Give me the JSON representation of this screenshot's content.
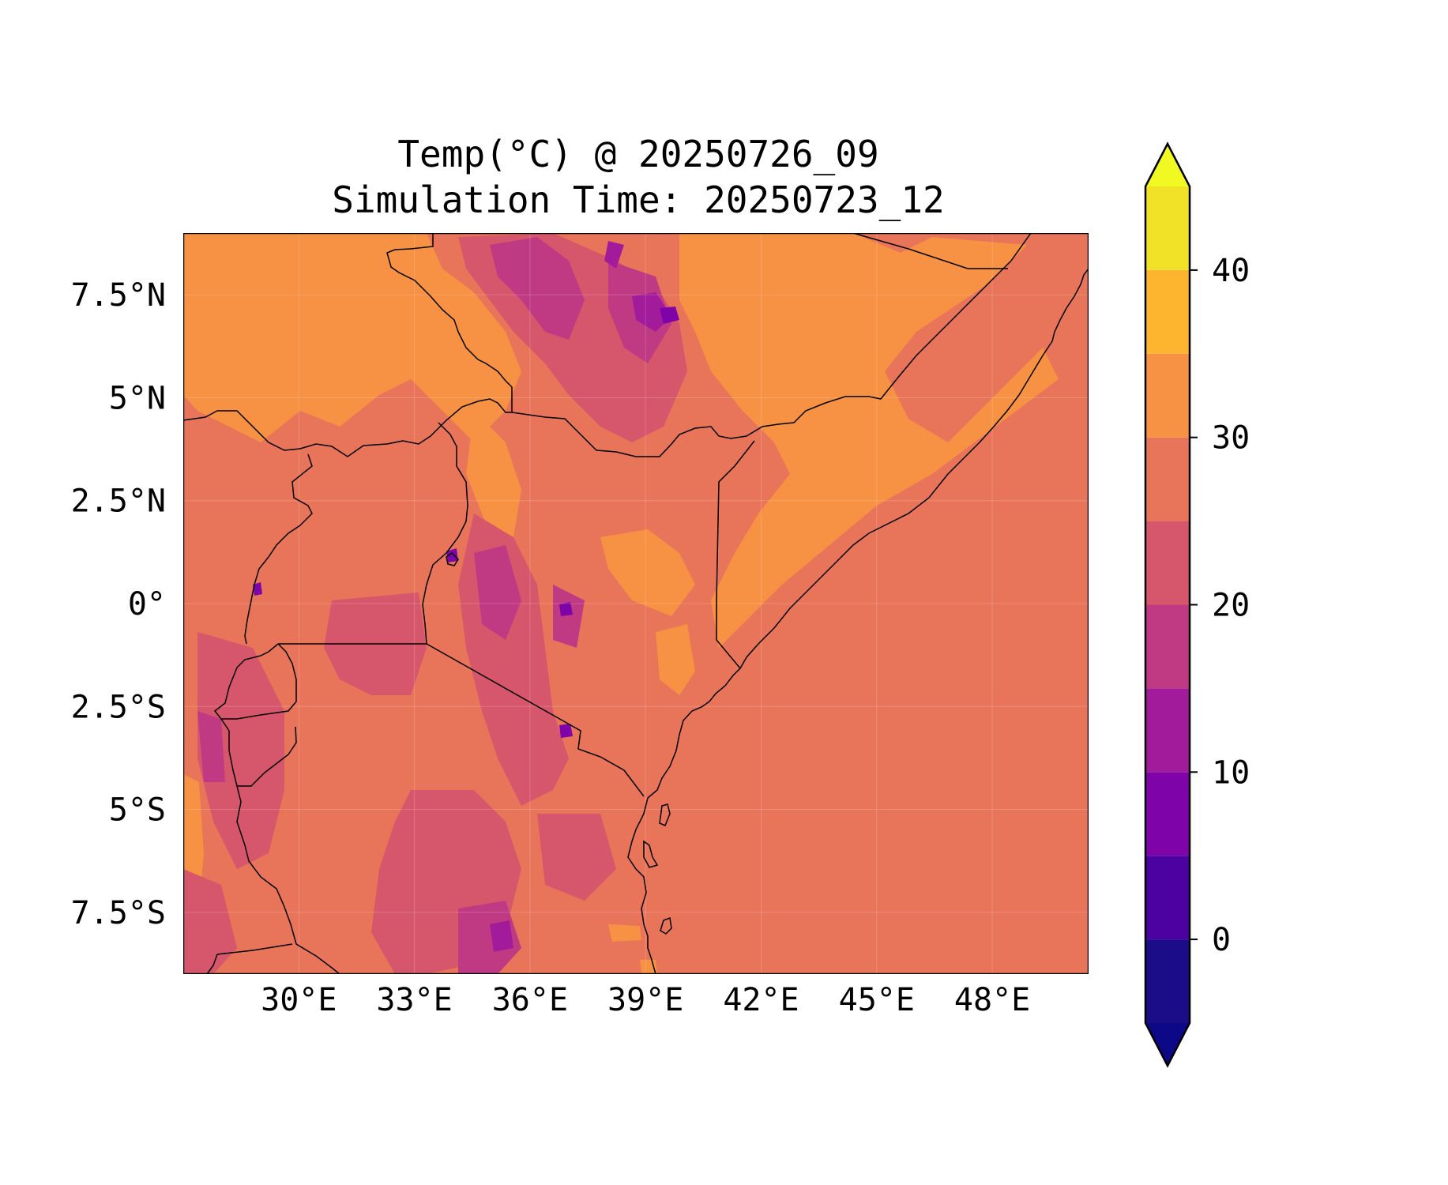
{
  "title": {
    "line1": "Temp(°C) @ 20250726_09",
    "line2": "Simulation Time: 20250723_12"
  },
  "map": {
    "extent": {
      "lon": [
        27,
        50.5
      ],
      "lat": [
        -9,
        9
      ]
    },
    "x_ticks": [
      {
        "value": 30,
        "label": "30°E"
      },
      {
        "value": 33,
        "label": "33°E"
      },
      {
        "value": 36,
        "label": "36°E"
      },
      {
        "value": 39,
        "label": "39°E"
      },
      {
        "value": 42,
        "label": "42°E"
      },
      {
        "value": 45,
        "label": "45°E"
      },
      {
        "value": 48,
        "label": "48°E"
      }
    ],
    "y_ticks": [
      {
        "value": 7.5,
        "label": "7.5°N"
      },
      {
        "value": 5,
        "label": "5°N"
      },
      {
        "value": 2.5,
        "label": "2.5°N"
      },
      {
        "value": 0,
        "label": "0°"
      },
      {
        "value": -2.5,
        "label": "2.5°S"
      },
      {
        "value": -5,
        "label": "5°S"
      },
      {
        "value": -7.5,
        "label": "7.5°S"
      }
    ],
    "background_color": "#e8745a",
    "gridlines": true
  },
  "colorbar": {
    "levels": [
      -5,
      0,
      5,
      10,
      15,
      20,
      25,
      30,
      35,
      40,
      45
    ],
    "colors": [
      "#1b0c88",
      "#4c02a1",
      "#7e03a8",
      "#a11b9b",
      "#c03a83",
      "#d6566c",
      "#e8745a",
      "#f79143",
      "#fdb42f",
      "#f2e227"
    ],
    "under_color": "#0d0887",
    "over_color": "#f0f921",
    "extend": "both",
    "ticks": [
      {
        "value": 0,
        "label": "0"
      },
      {
        "value": 10,
        "label": "10"
      },
      {
        "value": 20,
        "label": "20"
      },
      {
        "value": 30,
        "label": "30"
      },
      {
        "value": 40,
        "label": "40"
      }
    ]
  }
}
